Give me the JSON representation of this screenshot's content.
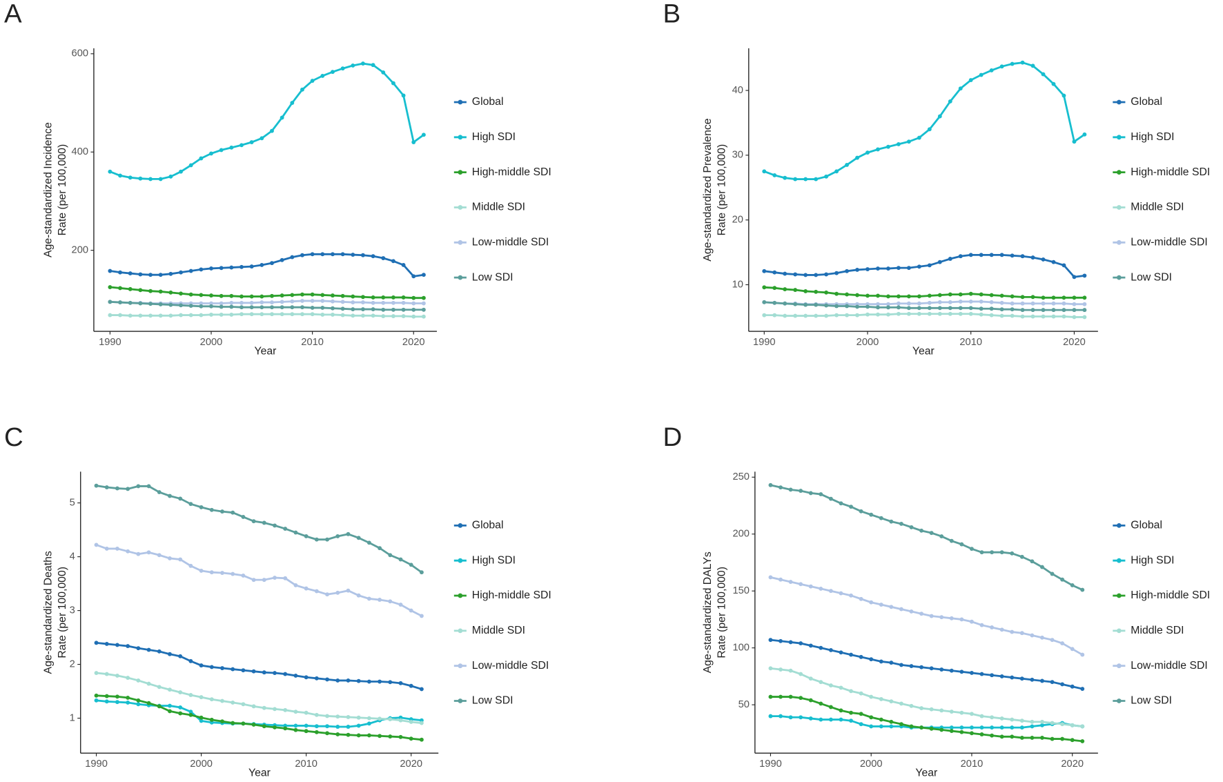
{
  "chart_data": [
    {
      "type": "line",
      "panel": "A",
      "ylabel": [
        "Age-standardized Incidence",
        "Rate (per 100,000)"
      ],
      "xlabel": "Year",
      "x": [
        1990,
        1991,
        1992,
        1993,
        1994,
        1995,
        1996,
        1997,
        1998,
        1999,
        2000,
        2001,
        2002,
        2003,
        2004,
        2005,
        2006,
        2007,
        2008,
        2009,
        2010,
        2011,
        2012,
        2013,
        2014,
        2015,
        2016,
        2017,
        2018,
        2019,
        2020,
        2021
      ],
      "xlim": [
        1988.4,
        2022.3
      ],
      "ylim": [
        35,
        611
      ],
      "xticks": [
        1990,
        2000,
        2010,
        2020
      ],
      "yticks": [
        200,
        400,
        600
      ],
      "series": [
        {
          "name": "Global",
          "color": "#1f6fb4",
          "values": [
            158,
            155,
            153,
            151,
            150,
            150,
            152,
            155,
            158,
            161,
            163,
            164,
            165,
            166,
            167,
            170,
            174,
            180,
            186,
            190,
            192,
            192,
            192,
            192,
            191,
            190,
            188,
            184,
            178,
            170,
            147,
            150
          ]
        },
        {
          "name": "High SDI",
          "color": "#17becf",
          "values": [
            360,
            352,
            348,
            346,
            345,
            345,
            350,
            360,
            373,
            387,
            397,
            404,
            409,
            414,
            420,
            428,
            443,
            470,
            500,
            527,
            545,
            555,
            563,
            570,
            576,
            580,
            577,
            562,
            540,
            515,
            420,
            435
          ]
        },
        {
          "name": "High-middle SDI",
          "color": "#2ca02c",
          "values": [
            125,
            123,
            121,
            119,
            117,
            116,
            114,
            112,
            110,
            109,
            108,
            107,
            107,
            106,
            106,
            106,
            107,
            108,
            109,
            110,
            110,
            109,
            108,
            107,
            106,
            105,
            104,
            104,
            104,
            104,
            103,
            103
          ]
        },
        {
          "name": "Middle SDI",
          "color": "#a3ddd3",
          "values": [
            68,
            68,
            67,
            67,
            67,
            67,
            67,
            68,
            68,
            68,
            69,
            69,
            69,
            70,
            70,
            70,
            70,
            70,
            70,
            70,
            70,
            69,
            69,
            68,
            67,
            67,
            67,
            66,
            66,
            66,
            65,
            65
          ]
        },
        {
          "name": "Low-middle SDI",
          "color": "#b0c4e6",
          "values": [
            95,
            94,
            93,
            93,
            92,
            92,
            92,
            92,
            92,
            92,
            92,
            92,
            93,
            93,
            93,
            94,
            94,
            95,
            96,
            97,
            97,
            97,
            96,
            95,
            94,
            94,
            93,
            93,
            93,
            93,
            92,
            92
          ]
        },
        {
          "name": "Low SDI",
          "color": "#5b9e9b",
          "values": [
            95,
            94,
            93,
            92,
            91,
            90,
            89,
            88,
            87,
            86,
            86,
            85,
            85,
            84,
            84,
            84,
            84,
            84,
            84,
            84,
            83,
            83,
            82,
            81,
            80,
            80,
            80,
            79,
            79,
            79,
            79,
            79
          ]
        }
      ]
    },
    {
      "type": "line",
      "panel": "B",
      "ylabel": [
        "Age-standardized Prevalence",
        "Rate (per 100,000)"
      ],
      "xlabel": "Year",
      "x": [
        1990,
        1991,
        1992,
        1993,
        1994,
        1995,
        1996,
        1997,
        1998,
        1999,
        2000,
        2001,
        2002,
        2003,
        2004,
        2005,
        2006,
        2007,
        2008,
        2009,
        2010,
        2011,
        2012,
        2013,
        2014,
        2015,
        2016,
        2017,
        2018,
        2019,
        2020,
        2021
      ],
      "xlim": [
        1988.5,
        2022.3
      ],
      "ylim": [
        2.8,
        46.5
      ],
      "xticks": [
        1990,
        2000,
        2010,
        2020
      ],
      "yticks": [
        10,
        20,
        30,
        40
      ],
      "series": [
        {
          "name": "Global",
          "color": "#1f6fb4",
          "values": [
            12.1,
            11.9,
            11.7,
            11.6,
            11.5,
            11.5,
            11.6,
            11.8,
            12.1,
            12.3,
            12.4,
            12.5,
            12.5,
            12.6,
            12.6,
            12.8,
            13,
            13.5,
            14,
            14.4,
            14.6,
            14.6,
            14.6,
            14.6,
            14.5,
            14.4,
            14.2,
            13.9,
            13.5,
            13,
            11.2,
            11.4
          ]
        },
        {
          "name": "High SDI",
          "color": "#17becf",
          "values": [
            27.5,
            26.9,
            26.5,
            26.3,
            26.3,
            26.3,
            26.7,
            27.5,
            28.5,
            29.6,
            30.4,
            30.9,
            31.3,
            31.7,
            32.1,
            32.7,
            34,
            36,
            38.3,
            40.3,
            41.6,
            42.4,
            43.1,
            43.7,
            44.1,
            44.3,
            43.8,
            42.5,
            41,
            39.2,
            32.1,
            33.2
          ]
        },
        {
          "name": "High-middle SDI",
          "color": "#2ca02c",
          "values": [
            9.6,
            9.5,
            9.3,
            9.2,
            9,
            8.9,
            8.8,
            8.6,
            8.5,
            8.4,
            8.3,
            8.3,
            8.2,
            8.2,
            8.2,
            8.2,
            8.3,
            8.4,
            8.5,
            8.5,
            8.6,
            8.5,
            8.4,
            8.3,
            8.2,
            8.1,
            8.1,
            8,
            8,
            8,
            8,
            8
          ]
        },
        {
          "name": "Middle SDI",
          "color": "#a3ddd3",
          "values": [
            5.3,
            5.3,
            5.2,
            5.2,
            5.2,
            5.2,
            5.2,
            5.3,
            5.3,
            5.3,
            5.4,
            5.4,
            5.4,
            5.5,
            5.5,
            5.5,
            5.5,
            5.5,
            5.5,
            5.5,
            5.5,
            5.4,
            5.3,
            5.2,
            5.2,
            5.1,
            5.1,
            5.1,
            5.1,
            5.1,
            5,
            5
          ]
        },
        {
          "name": "Low-middle SDI",
          "color": "#b0c4e6",
          "values": [
            7.3,
            7.2,
            7.1,
            7.1,
            7,
            7,
            7,
            7,
            7,
            7,
            7,
            7,
            7,
            7.1,
            7.1,
            7.1,
            7.2,
            7.3,
            7.3,
            7.4,
            7.4,
            7.4,
            7.3,
            7.2,
            7.1,
            7.1,
            7.1,
            7.1,
            7.1,
            7.1,
            7,
            7
          ]
        },
        {
          "name": "Low SDI",
          "color": "#5b9e9b",
          "values": [
            7.3,
            7.2,
            7.1,
            7,
            6.9,
            6.9,
            6.8,
            6.7,
            6.7,
            6.6,
            6.6,
            6.5,
            6.5,
            6.5,
            6.4,
            6.4,
            6.4,
            6.4,
            6.4,
            6.4,
            6.4,
            6.3,
            6.3,
            6.2,
            6.2,
            6.1,
            6.1,
            6.1,
            6.1,
            6.1,
            6.1,
            6.1
          ]
        }
      ]
    },
    {
      "type": "line",
      "panel": "C",
      "ylabel": [
        "Age-standardized Deaths",
        "Rate (per 100,000)"
      ],
      "xlabel": "Year",
      "x": [
        1990,
        1991,
        1992,
        1993,
        1994,
        1995,
        1996,
        1997,
        1998,
        1999,
        2000,
        2001,
        2002,
        2003,
        2004,
        2005,
        2006,
        2007,
        2008,
        2009,
        2010,
        2011,
        2012,
        2013,
        2014,
        2015,
        2016,
        2017,
        2018,
        2019,
        2020,
        2021
      ],
      "xlim": [
        1988.5,
        2022.6
      ],
      "ylim": [
        0.35,
        5.58
      ],
      "xticks": [
        1990,
        2000,
        2010,
        2020
      ],
      "yticks": [
        1,
        2,
        3,
        4,
        5
      ],
      "series": [
        {
          "name": "Global",
          "color": "#1f6fb4",
          "values": [
            2.4,
            2.38,
            2.36,
            2.34,
            2.3,
            2.27,
            2.24,
            2.19,
            2.15,
            2.06,
            1.98,
            1.95,
            1.93,
            1.91,
            1.89,
            1.87,
            1.85,
            1.84,
            1.82,
            1.79,
            1.76,
            1.74,
            1.72,
            1.7,
            1.7,
            1.69,
            1.68,
            1.68,
            1.67,
            1.65,
            1.6,
            1.54
          ]
        },
        {
          "name": "High SDI",
          "color": "#17becf",
          "values": [
            1.33,
            1.31,
            1.3,
            1.29,
            1.26,
            1.24,
            1.23,
            1.23,
            1.2,
            1.12,
            0.95,
            0.92,
            0.91,
            0.9,
            0.9,
            0.89,
            0.88,
            0.87,
            0.86,
            0.86,
            0.86,
            0.85,
            0.85,
            0.84,
            0.84,
            0.86,
            0.9,
            0.96,
            1,
            1.01,
            0.98,
            0.96
          ]
        },
        {
          "name": "High-middle SDI",
          "color": "#2ca02c",
          "values": [
            1.42,
            1.41,
            1.4,
            1.38,
            1.33,
            1.28,
            1.22,
            1.13,
            1.09,
            1.06,
            1.01,
            0.97,
            0.94,
            0.91,
            0.9,
            0.88,
            0.85,
            0.83,
            0.81,
            0.78,
            0.76,
            0.74,
            0.72,
            0.7,
            0.69,
            0.68,
            0.68,
            0.67,
            0.66,
            0.65,
            0.62,
            0.6
          ]
        },
        {
          "name": "Middle SDI",
          "color": "#a3ddd3",
          "values": [
            1.84,
            1.82,
            1.79,
            1.75,
            1.7,
            1.64,
            1.58,
            1.53,
            1.48,
            1.43,
            1.39,
            1.35,
            1.32,
            1.29,
            1.26,
            1.22,
            1.19,
            1.17,
            1.15,
            1.12,
            1.1,
            1.06,
            1.04,
            1.03,
            1.02,
            1.01,
            1,
            0.99,
            0.98,
            0.96,
            0.93,
            0.91
          ]
        },
        {
          "name": "Low-middle SDI",
          "color": "#b0c4e6",
          "values": [
            4.22,
            4.15,
            4.15,
            4.1,
            4.05,
            4.08,
            4.03,
            3.97,
            3.95,
            3.83,
            3.74,
            3.71,
            3.7,
            3.68,
            3.65,
            3.57,
            3.57,
            3.61,
            3.6,
            3.47,
            3.41,
            3.36,
            3.3,
            3.33,
            3.37,
            3.28,
            3.22,
            3.2,
            3.17,
            3.11,
            3,
            2.9
          ]
        },
        {
          "name": "Low SDI",
          "color": "#5b9e9b",
          "values": [
            5.32,
            5.29,
            5.27,
            5.26,
            5.31,
            5.31,
            5.2,
            5.13,
            5.08,
            4.98,
            4.92,
            4.87,
            4.84,
            4.82,
            4.74,
            4.66,
            4.63,
            4.58,
            4.52,
            4.45,
            4.38,
            4.32,
            4.32,
            4.38,
            4.42,
            4.35,
            4.26,
            4.16,
            4.03,
            3.95,
            3.85,
            3.71
          ]
        }
      ]
    },
    {
      "type": "line",
      "panel": "D",
      "ylabel": [
        "Age-standardized DALYs",
        "Rate (per 100,000)"
      ],
      "xlabel": "Year",
      "x": [
        1990,
        1991,
        1992,
        1993,
        1994,
        1995,
        1996,
        1997,
        1998,
        1999,
        2000,
        2001,
        2002,
        2003,
        2004,
        2005,
        2006,
        2007,
        2008,
        2009,
        2010,
        2011,
        2012,
        2013,
        2014,
        2015,
        2016,
        2017,
        2018,
        2019,
        2020,
        2021
      ],
      "xlim": [
        1988.45,
        2022.55
      ],
      "ylim": [
        7.5,
        254.8
      ],
      "xticks": [
        1990,
        2000,
        2010,
        2020
      ],
      "yticks": [
        50,
        100,
        150,
        200,
        250
      ],
      "series": [
        {
          "name": "Global",
          "color": "#1f6fb4",
          "values": [
            107,
            106,
            105,
            104,
            102,
            100,
            98,
            96,
            94,
            92,
            90,
            88,
            87,
            85,
            84,
            83,
            82,
            81,
            80,
            79,
            78,
            77,
            76,
            75,
            74,
            73,
            72,
            71,
            70,
            68,
            66,
            64
          ]
        },
        {
          "name": "High SDI",
          "color": "#17becf",
          "values": [
            40,
            40,
            39,
            39,
            38,
            37,
            37,
            37,
            36,
            33,
            31,
            31,
            31,
            31,
            30,
            30,
            30,
            30,
            30,
            30,
            30,
            30,
            30,
            30,
            30,
            30,
            31,
            32,
            33,
            34,
            32,
            31
          ]
        },
        {
          "name": "High-middle SDI",
          "color": "#2ca02c",
          "values": [
            57,
            57,
            57,
            56,
            54,
            51,
            48,
            45,
            43,
            42,
            39,
            37,
            35,
            33,
            31,
            30,
            29,
            28,
            27,
            26,
            25,
            24,
            23,
            22,
            22,
            21,
            21,
            21,
            20,
            20,
            19,
            18
          ]
        },
        {
          "name": "Middle SDI",
          "color": "#a3ddd3",
          "values": [
            82,
            81,
            80,
            77,
            73,
            70,
            67,
            65,
            62,
            60,
            57,
            55,
            53,
            51,
            49,
            47,
            46,
            45,
            44,
            43,
            42,
            40,
            39,
            38,
            37,
            36,
            35,
            35,
            34,
            33,
            32,
            31
          ]
        },
        {
          "name": "Low-middle SDI",
          "color": "#b0c4e6",
          "values": [
            162,
            160,
            158,
            156,
            154,
            152,
            150,
            148,
            146,
            143,
            140,
            138,
            136,
            134,
            132,
            130,
            128,
            127,
            126,
            125,
            123,
            120,
            118,
            116,
            114,
            113,
            111,
            109,
            107,
            104,
            99,
            94
          ]
        },
        {
          "name": "Low SDI",
          "color": "#5b9e9b",
          "values": [
            243,
            241,
            239,
            238,
            236,
            235,
            231,
            227,
            224,
            220,
            217,
            214,
            211,
            209,
            206,
            203,
            201,
            198,
            194,
            191,
            187,
            184,
            184,
            184,
            183,
            180,
            176,
            171,
            165,
            160,
            155,
            151
          ]
        }
      ]
    }
  ]
}
